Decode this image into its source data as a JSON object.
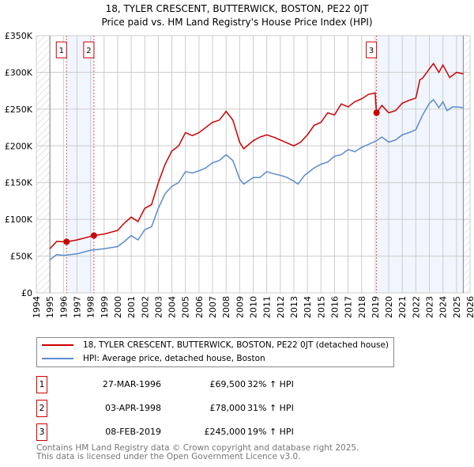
{
  "chart_data": {
    "type": "line",
    "title": "18, TYLER CRESCENT, BUTTERWICK, BOSTON, PE22 0JT",
    "subtitle": "Price paid vs. HM Land Registry's House Price Index (HPI)",
    "xlim": [
      1994,
      2026
    ],
    "ylim": [
      0,
      350000
    ],
    "x_ticks": [
      "1994",
      "1995",
      "1996",
      "1997",
      "1998",
      "1999",
      "2000",
      "2001",
      "2002",
      "2003",
      "2004",
      "2005",
      "2006",
      "2007",
      "2008",
      "2009",
      "2010",
      "2011",
      "2012",
      "2013",
      "2014",
      "2015",
      "2016",
      "2017",
      "2018",
      "2019",
      "2020",
      "2021",
      "2022",
      "2023",
      "2024",
      "2025",
      "2026"
    ],
    "y_ticks": [
      {
        "v": 0,
        "label": "£0"
      },
      {
        "v": 50000,
        "label": "£50K"
      },
      {
        "v": 100000,
        "label": "£100K"
      },
      {
        "v": 150000,
        "label": "£150K"
      },
      {
        "v": 200000,
        "label": "£200K"
      },
      {
        "v": 250000,
        "label": "£250K"
      },
      {
        "v": 300000,
        "label": "£300K"
      },
      {
        "v": 350000,
        "label": "£350K"
      }
    ],
    "grid": true,
    "series": [
      {
        "name": "18, TYLER CRESCENT, BUTTERWICK, BOSTON, PE22 0JT (detached house)",
        "color": "#cc0000",
        "x": [
          1995,
          1995.5,
          1996.23,
          1997,
          1998.25,
          1999,
          2000,
          2000.5,
          2001,
          2001.5,
          2002,
          2002.5,
          2003,
          2003.5,
          2004,
          2004.5,
          2005,
          2005.5,
          2006,
          2006.5,
          2007,
          2007.5,
          2008,
          2008.5,
          2009,
          2009.3,
          2010,
          2010.5,
          2011,
          2011.5,
          2012,
          2012.5,
          2013,
          2013.5,
          2014,
          2014.5,
          2015,
          2015.5,
          2016,
          2016.5,
          2017,
          2017.5,
          2018,
          2018.5,
          2019.0,
          2019.1,
          2019.5,
          2020,
          2020.5,
          2021,
          2021.5,
          2022,
          2022.3,
          2022.5,
          2023,
          2023.3,
          2023.7,
          2024,
          2024.5,
          2025,
          2025.5
        ],
        "y": [
          60000,
          70000,
          69500,
          72000,
          78000,
          80000,
          85000,
          95000,
          103000,
          97000,
          115000,
          120000,
          150000,
          175000,
          193000,
          200000,
          218000,
          214000,
          218000,
          225000,
          232000,
          235000,
          247000,
          235000,
          205000,
          196000,
          207000,
          212000,
          215000,
          212000,
          208000,
          204000,
          200000,
          205000,
          215000,
          228000,
          232000,
          245000,
          242000,
          257000,
          253000,
          260000,
          264000,
          270000,
          272000,
          245000,
          255000,
          245000,
          248000,
          258000,
          262000,
          265000,
          290000,
          292000,
          305000,
          312000,
          300000,
          310000,
          293000,
          300000,
          298000
        ]
      },
      {
        "name": "HPI: Average price, detached house, Boston",
        "color": "#5b8bd0",
        "x": [
          1995,
          1995.5,
          1996,
          1997,
          1998,
          1999,
          2000,
          2000.5,
          2001,
          2001.5,
          2002,
          2002.5,
          2003,
          2003.5,
          2004,
          2004.5,
          2005,
          2005.5,
          2006,
          2006.5,
          2007,
          2007.5,
          2008,
          2008.5,
          2009,
          2009.3,
          2010,
          2010.5,
          2011,
          2011.5,
          2012,
          2012.5,
          2013,
          2013.3,
          2013.8,
          2014.5,
          2015,
          2015.5,
          2016,
          2016.5,
          2017,
          2017.5,
          2018,
          2018.5,
          2019,
          2019.5,
          2020,
          2020.5,
          2021,
          2021.5,
          2022,
          2022.5,
          2023,
          2023.3,
          2023.7,
          2024,
          2024.3,
          2024.7,
          2025,
          2025.5
        ],
        "y": [
          45000,
          52000,
          51000,
          53000,
          58000,
          60000,
          63000,
          70000,
          78000,
          72000,
          86000,
          90000,
          115000,
          135000,
          145000,
          150000,
          165000,
          163000,
          166000,
          170000,
          177000,
          180000,
          188000,
          180000,
          155000,
          148000,
          157000,
          157000,
          165000,
          162000,
          160000,
          157000,
          152000,
          148000,
          160000,
          170000,
          175000,
          178000,
          186000,
          188000,
          195000,
          192000,
          198000,
          202000,
          206000,
          212000,
          205000,
          208000,
          215000,
          218000,
          222000,
          242000,
          258000,
          263000,
          252000,
          260000,
          248000,
          253000,
          253000,
          252000
        ]
      }
    ],
    "sales": [
      {
        "num": "1",
        "x": 1996.23,
        "y": 69500,
        "date": "27-MAR-1996",
        "price": "£69,500",
        "hpi": "32% ↑ HPI"
      },
      {
        "num": "2",
        "x": 1998.25,
        "y": 78000,
        "date": "03-APR-1998",
        "price": "£78,000",
        "hpi": "31% ↑ HPI"
      },
      {
        "num": "3",
        "x": 2019.1,
        "y": 245000,
        "date": "08-FEB-2019",
        "price": "£245,000",
        "hpi": "19% ↑ HPI"
      }
    ],
    "shaded_ranges": [
      [
        1996.23,
        1998.25
      ],
      [
        2019.1,
        2025.5
      ]
    ],
    "data_range": [
      1995,
      2025.5
    ],
    "legend_position": "below"
  },
  "footer": {
    "line1": "Contains HM Land Registry data © Crown copyright and database right 2025.",
    "line2": "This data is licensed under the Open Government Licence v3.0."
  }
}
